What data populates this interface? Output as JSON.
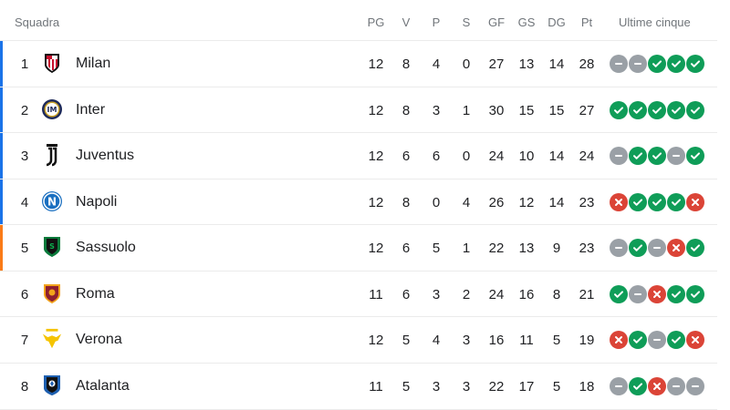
{
  "header": {
    "team_col": "Squadra",
    "cols": [
      "PG",
      "V",
      "P",
      "S",
      "GF",
      "GS",
      "DG",
      "Pt"
    ],
    "form_col": "Ultime cinque"
  },
  "colors": {
    "win": "#0f9d58",
    "loss": "#db4437",
    "draw": "#9aa0a6",
    "champions_league": "#1a73e8",
    "europa_league": "#fa7b17"
  },
  "rows": [
    {
      "pos": "1",
      "team": "Milan",
      "crest": "milan-crest-icon",
      "zone": "champions_league",
      "stats": [
        "12",
        "8",
        "4",
        "0",
        "27",
        "13",
        "14",
        "28"
      ],
      "form": [
        "D",
        "D",
        "W",
        "W",
        "W"
      ]
    },
    {
      "pos": "2",
      "team": "Inter",
      "crest": "inter-crest-icon",
      "zone": "champions_league",
      "stats": [
        "12",
        "8",
        "3",
        "1",
        "30",
        "15",
        "15",
        "27"
      ],
      "form": [
        "W",
        "W",
        "W",
        "W",
        "W"
      ]
    },
    {
      "pos": "3",
      "team": "Juventus",
      "crest": "juventus-crest-icon",
      "zone": "champions_league",
      "stats": [
        "12",
        "6",
        "6",
        "0",
        "24",
        "10",
        "14",
        "24"
      ],
      "form": [
        "D",
        "W",
        "W",
        "D",
        "W"
      ]
    },
    {
      "pos": "4",
      "team": "Napoli",
      "crest": "napoli-crest-icon",
      "zone": "champions_league",
      "stats": [
        "12",
        "8",
        "0",
        "4",
        "26",
        "12",
        "14",
        "23"
      ],
      "form": [
        "L",
        "W",
        "W",
        "W",
        "L"
      ]
    },
    {
      "pos": "5",
      "team": "Sassuolo",
      "crest": "sassuolo-crest-icon",
      "zone": "europa_league",
      "stats": [
        "12",
        "6",
        "5",
        "1",
        "22",
        "13",
        "9",
        "23"
      ],
      "form": [
        "D",
        "W",
        "D",
        "L",
        "W"
      ]
    },
    {
      "pos": "6",
      "team": "Roma",
      "crest": "roma-crest-icon",
      "zone": "",
      "stats": [
        "11",
        "6",
        "3",
        "2",
        "24",
        "16",
        "8",
        "21"
      ],
      "form": [
        "W",
        "D",
        "L",
        "W",
        "W"
      ]
    },
    {
      "pos": "7",
      "team": "Verona",
      "crest": "verona-crest-icon",
      "zone": "",
      "stats": [
        "12",
        "5",
        "4",
        "3",
        "16",
        "11",
        "5",
        "19"
      ],
      "form": [
        "L",
        "W",
        "D",
        "W",
        "L"
      ]
    },
    {
      "pos": "8",
      "team": "Atalanta",
      "crest": "atalanta-crest-icon",
      "zone": "",
      "stats": [
        "11",
        "5",
        "3",
        "3",
        "22",
        "17",
        "5",
        "18"
      ],
      "form": [
        "D",
        "W",
        "L",
        "D",
        "D"
      ]
    }
  ]
}
